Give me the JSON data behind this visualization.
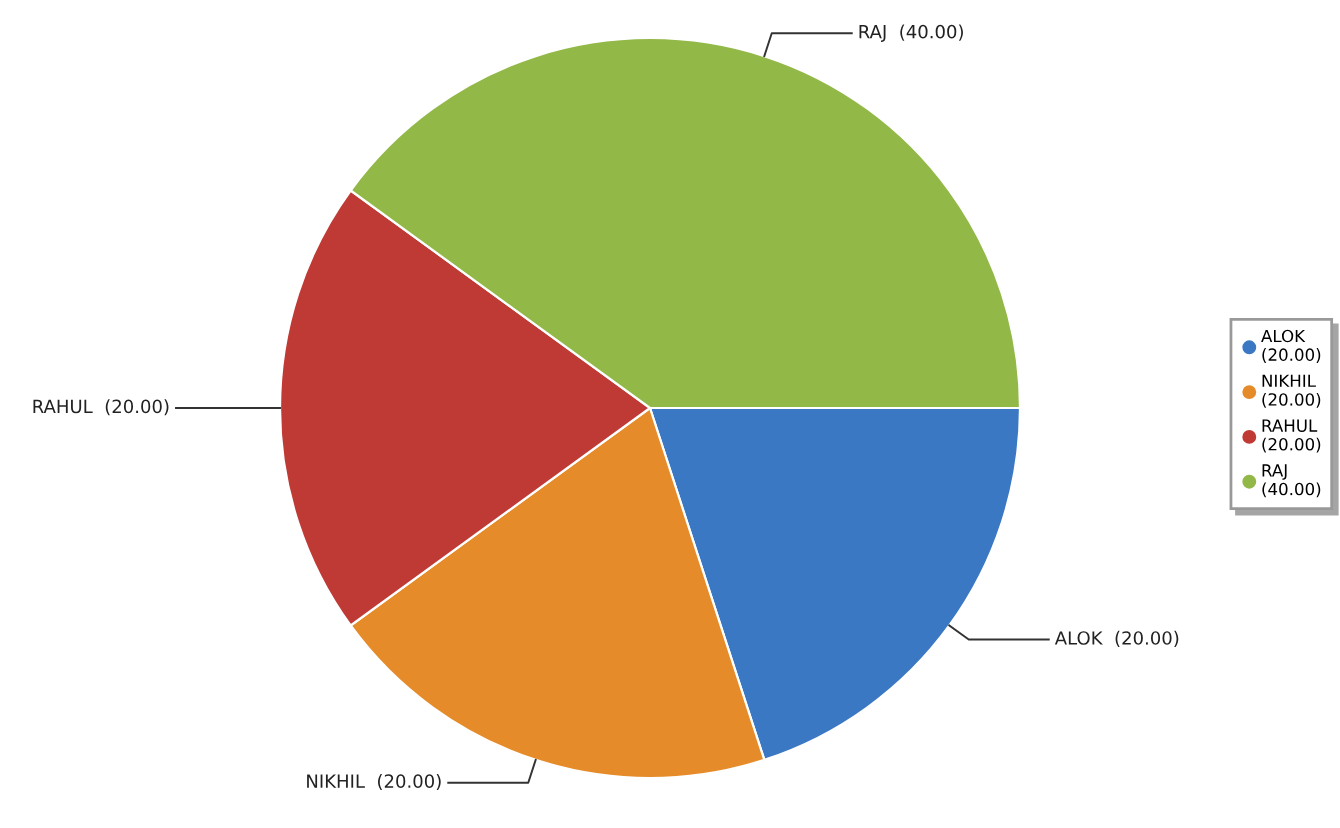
{
  "chart_data": {
    "type": "pie",
    "categories": [
      "ALOK",
      "NIKHIL",
      "RAHUL",
      "RAJ"
    ],
    "values": [
      20,
      20,
      20,
      40
    ],
    "value_labels": [
      "(20.00)",
      "(20.00)",
      "(20.00)",
      "(40.00)"
    ],
    "colors": [
      "#3b78c3",
      "#e58b2a",
      "#c03a35",
      "#92b847"
    ],
    "legend": "right"
  }
}
